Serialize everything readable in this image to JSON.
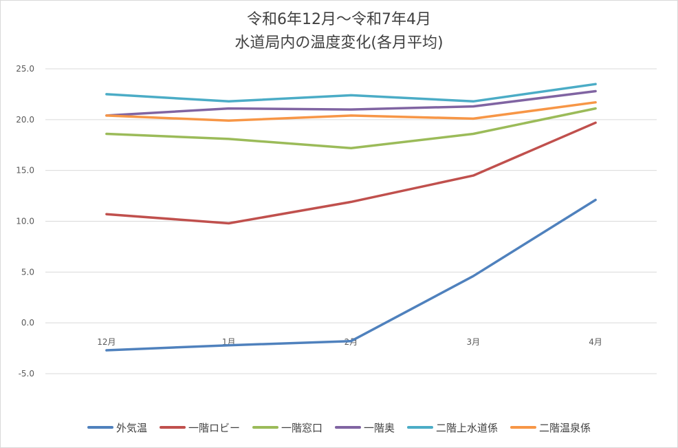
{
  "chart_data": {
    "type": "line",
    "title_line1": "令和6年12月～令和7年4月",
    "title_line2": "水道局内の温度変化(各月平均)",
    "categories": [
      "12月",
      "1月",
      "2月",
      "3月",
      "4月"
    ],
    "ylim": [
      -5,
      25
    ],
    "yticks": [
      "25.0",
      "20.0",
      "15.0",
      "10.0",
      "5.0",
      "0.0",
      "-5.0"
    ],
    "grid": true,
    "legend_position": "bottom",
    "series": [
      {
        "name": "外気温",
        "color": "#4F81BD",
        "values": [
          -2.7,
          -2.2,
          -1.8,
          4.6,
          12.1
        ]
      },
      {
        "name": "一階ロビー",
        "color": "#C0504D",
        "values": [
          10.7,
          9.8,
          11.9,
          14.5,
          19.7
        ]
      },
      {
        "name": "一階窓口",
        "color": "#9BBB59",
        "values": [
          18.6,
          18.1,
          17.2,
          18.6,
          21.1
        ]
      },
      {
        "name": "一階奥",
        "color": "#8064A2",
        "values": [
          20.4,
          21.1,
          21.0,
          21.3,
          22.8
        ]
      },
      {
        "name": "二階上水道係",
        "color": "#4BACC6",
        "values": [
          22.5,
          21.8,
          22.4,
          21.8,
          23.5
        ]
      },
      {
        "name": "二階温泉係",
        "color": "#F79646",
        "values": [
          20.4,
          19.9,
          20.4,
          20.1,
          21.7
        ]
      }
    ]
  }
}
